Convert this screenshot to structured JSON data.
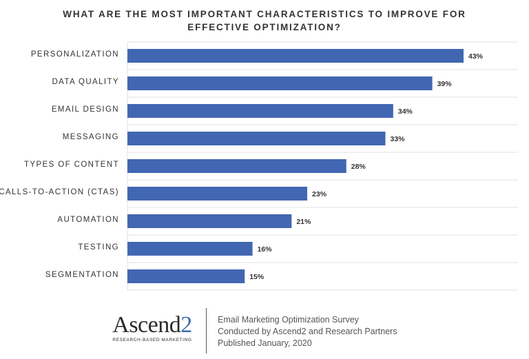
{
  "chart_data": {
    "type": "bar",
    "orientation": "horizontal",
    "title_lines": [
      "WHAT ARE THE MOST IMPORTANT CHARACTERISTICS TO IMPROVE FOR",
      "EFFECTIVE OPTIMIZATION?"
    ],
    "categories": [
      "PERSONALIZATION",
      "DATA QUALITY",
      "EMAIL DESIGN",
      "MESSAGING",
      "TYPES OF CONTENT",
      "CALLS-TO-ACTION (CTAS)",
      "AUTOMATION",
      "TESTING",
      "SEGMENTATION"
    ],
    "values": [
      43,
      39,
      34,
      33,
      28,
      23,
      21,
      16,
      15
    ],
    "value_labels": [
      "43%",
      "39%",
      "34%",
      "33%",
      "28%",
      "23%",
      "21%",
      "16%",
      "15%"
    ],
    "xlim": [
      0,
      50
    ],
    "bar_color": "#4267b2",
    "grid": true
  },
  "footer": {
    "logo_main": "Ascend",
    "logo_accent": "2",
    "logo_tagline": "RESEARCH-BASED MARKETING",
    "lines": [
      "Email Marketing Optimization Survey",
      "Conducted by Ascend2 and Research Partners",
      "Published January, 2020"
    ]
  }
}
